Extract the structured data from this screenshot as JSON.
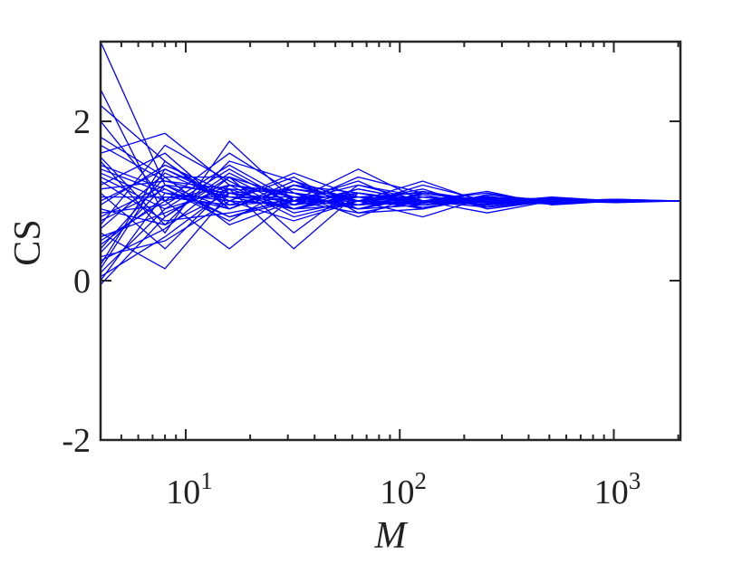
{
  "chart_data": {
    "type": "line",
    "xlabel": "M",
    "ylabel": "CS",
    "x_scale": "log",
    "xlim": [
      4,
      2048
    ],
    "ylim": [
      -2,
      3
    ],
    "x_ticks": [
      {
        "value": 10,
        "base": "10",
        "exp": "1"
      },
      {
        "value": 100,
        "base": "10",
        "exp": "2"
      },
      {
        "value": 1000,
        "base": "10",
        "exp": "3"
      }
    ],
    "y_ticks": [
      {
        "value": -2,
        "label": "-2"
      },
      {
        "value": 0,
        "label": "0"
      },
      {
        "value": 2,
        "label": "2"
      }
    ],
    "grid": false,
    "line_color": "#0000ff",
    "x": [
      4,
      8,
      16,
      32,
      64,
      128,
      256,
      512,
      1024,
      2048
    ],
    "series": [
      {
        "values": [
          3.0,
          1.2,
          1.1,
          1.0,
          0.95,
          1.05,
          1.0,
          0.98,
          1.0,
          1.0
        ]
      },
      {
        "values": [
          2.4,
          0.8,
          1.3,
          0.9,
          1.1,
          1.0,
          1.02,
          1.0,
          0.99,
          1.0
        ]
      },
      {
        "values": [
          2.2,
          1.5,
          0.9,
          1.2,
          1.0,
          0.95,
          1.05,
          1.0,
          1.01,
          1.0
        ]
      },
      {
        "values": [
          2.0,
          1.0,
          1.6,
          1.1,
          0.9,
          1.1,
          0.97,
          1.02,
          1.0,
          1.0
        ]
      },
      {
        "values": [
          1.8,
          1.3,
          0.7,
          1.0,
          1.2,
          1.0,
          1.0,
          0.96,
          1.0,
          1.0
        ]
      },
      {
        "values": [
          1.6,
          1.85,
          1.2,
          0.8,
          1.0,
          1.05,
          0.95,
          1.03,
          1.0,
          1.0
        ]
      },
      {
        "values": [
          1.5,
          0.6,
          1.75,
          1.0,
          0.85,
          0.9,
          1.08,
          1.0,
          0.98,
          1.0
        ]
      },
      {
        "values": [
          1.4,
          1.1,
          1.0,
          1.35,
          1.05,
          1.0,
          0.92,
          1.0,
          1.02,
          1.0
        ]
      },
      {
        "values": [
          1.3,
          0.9,
          1.4,
          0.95,
          1.3,
          1.1,
          1.0,
          0.97,
          1.0,
          1.0
        ]
      },
      {
        "values": [
          1.2,
          1.6,
          0.9,
          1.2,
          1.0,
          0.8,
          1.05,
          1.02,
          1.0,
          1.0
        ]
      },
      {
        "values": [
          1.1,
          0.4,
          1.2,
          1.05,
          0.95,
          1.2,
          1.0,
          1.0,
          0.99,
          1.0
        ]
      },
      {
        "values": [
          1.0,
          1.4,
          1.05,
          0.9,
          1.15,
          1.0,
          1.12,
          0.95,
          1.0,
          1.0
        ]
      },
      {
        "values": [
          0.9,
          0.7,
          1.5,
          1.25,
          0.9,
          1.05,
          0.98,
          1.05,
          1.0,
          1.0
        ]
      },
      {
        "values": [
          0.8,
          1.2,
          0.8,
          1.0,
          1.1,
          0.95,
          1.0,
          1.0,
          1.02,
          1.0
        ]
      },
      {
        "values": [
          0.7,
          1.7,
          1.25,
          0.85,
          1.0,
          1.15,
          0.9,
          1.0,
          1.0,
          1.0
        ]
      },
      {
        "values": [
          0.6,
          0.15,
          1.1,
          1.15,
          1.05,
          0.9,
          1.05,
          0.98,
          1.0,
          1.0
        ]
      },
      {
        "values": [
          0.5,
          1.0,
          0.4,
          1.05,
          0.95,
          1.0,
          1.0,
          1.03,
          0.99,
          1.0
        ]
      },
      {
        "values": [
          0.4,
          1.3,
          1.3,
          0.6,
          1.2,
          1.05,
          0.95,
          1.0,
          1.0,
          1.0
        ]
      },
      {
        "values": [
          0.3,
          0.5,
          1.0,
          1.3,
          0.85,
          1.0,
          1.1,
          0.97,
          1.01,
          1.0
        ]
      },
      {
        "values": [
          0.2,
          1.5,
          0.95,
          1.0,
          1.0,
          1.25,
          0.97,
          1.0,
          1.0,
          1.0
        ]
      },
      {
        "values": [
          0.1,
          0.9,
          1.15,
          0.4,
          1.1,
          0.98,
          1.03,
          1.02,
          1.0,
          1.0
        ]
      },
      {
        "values": [
          0.0,
          1.1,
          0.9,
          1.2,
          0.95,
          1.0,
          0.85,
          1.0,
          1.0,
          1.0
        ]
      },
      {
        "values": [
          -0.05,
          0.8,
          1.35,
          0.95,
          1.05,
          1.1,
          1.0,
          0.99,
          1.0,
          1.0
        ]
      },
      {
        "values": [
          1.35,
          1.0,
          1.2,
          1.1,
          1.0,
          0.92,
          1.02,
          1.01,
          1.0,
          1.0
        ]
      },
      {
        "values": [
          1.25,
          0.75,
          0.85,
          1.0,
          1.4,
          1.0,
          0.95,
          1.0,
          1.0,
          1.0
        ]
      },
      {
        "values": [
          1.15,
          1.25,
          1.05,
          1.05,
          0.9,
          1.05,
          1.0,
          1.04,
          1.0,
          1.0
        ]
      },
      {
        "values": [
          1.05,
          1.05,
          0.95,
          1.15,
          1.0,
          0.97,
          1.06,
          0.96,
          1.0,
          1.0
        ]
      },
      {
        "values": [
          0.95,
          1.45,
          1.1,
          0.9,
          1.05,
          1.0,
          1.0,
          1.0,
          1.01,
          1.0
        ]
      },
      {
        "values": [
          0.85,
          0.95,
          1.45,
          1.0,
          0.95,
          1.08,
          0.93,
          1.0,
          1.0,
          1.0
        ]
      },
      {
        "values": [
          0.75,
          1.15,
          0.75,
          1.2,
          1.1,
          1.0,
          1.04,
          1.02,
          1.0,
          1.0
        ]
      },
      {
        "values": [
          0.65,
          1.35,
          1.0,
          0.75,
          1.0,
          0.95,
          1.0,
          0.98,
          1.0,
          1.0
        ]
      },
      {
        "values": [
          0.55,
          0.85,
          1.2,
          1.1,
          0.8,
          1.1,
          1.0,
          1.0,
          1.0,
          1.0
        ]
      },
      {
        "values": [
          0.45,
          1.05,
          1.05,
          1.0,
          1.25,
          0.9,
          1.08,
          1.0,
          0.99,
          1.0
        ]
      },
      {
        "values": [
          0.35,
          1.2,
          0.9,
          1.25,
          1.0,
          1.0,
          0.96,
          1.03,
          1.0,
          1.0
        ]
      },
      {
        "values": [
          0.25,
          0.65,
          1.3,
          1.05,
          0.95,
          1.05,
          1.0,
          0.99,
          1.0,
          1.0
        ]
      },
      {
        "values": [
          0.15,
          1.4,
          1.0,
          0.95,
          1.15,
          1.0,
          1.02,
          1.0,
          1.0,
          1.0
        ]
      },
      {
        "values": [
          0.05,
          0.55,
          1.15,
          1.1,
          0.9,
          0.95,
          1.0,
          1.01,
          1.0,
          1.0
        ]
      },
      {
        "values": [
          1.45,
          1.15,
          0.8,
          1.05,
          1.05,
          1.0,
          0.98,
          1.0,
          1.0,
          1.0
        ]
      },
      {
        "values": [
          1.55,
          0.7,
          1.1,
          1.0,
          1.0,
          1.12,
          1.0,
          0.97,
          1.01,
          1.0
        ]
      },
      {
        "values": [
          1.7,
          1.25,
          1.15,
          0.9,
          0.95,
          1.0,
          1.05,
          1.0,
          1.0,
          1.0
        ]
      }
    ]
  }
}
